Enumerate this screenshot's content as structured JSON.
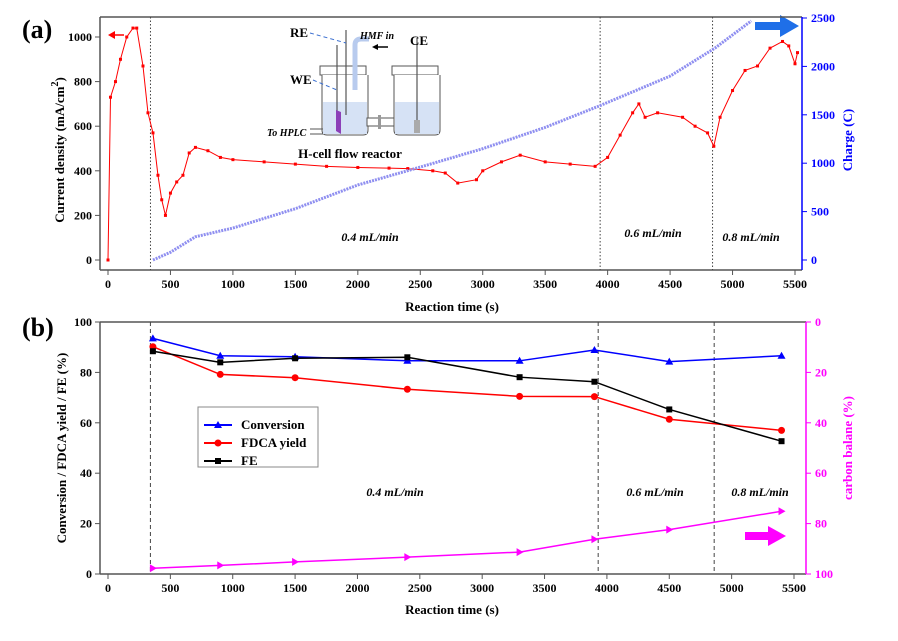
{
  "chart_data": [
    {
      "panel_label": "(a)",
      "type": "line",
      "xlabel": "Reaction time (s)",
      "ylabel": "Current density (mA/cm2)",
      "ylabel_main": "Current density (mA/cm",
      "ylabel_sup": "2",
      "ylabel_end": ")",
      "y2label": "Charge (C)",
      "xlim": [
        0,
        5500
      ],
      "ylim": [
        0,
        1000
      ],
      "y2lim": [
        0,
        2500
      ],
      "xticks": [
        0,
        500,
        1000,
        1500,
        2000,
        2500,
        3000,
        3500,
        4000,
        4500,
        5000,
        5500
      ],
      "yticks": [
        0,
        200,
        400,
        600,
        800,
        1000
      ],
      "y2ticks": [
        0,
        500,
        1000,
        1500,
        2000,
        2500
      ],
      "grid": false,
      "colors": {
        "current": "#ff0000",
        "charge": "#8f8ff0",
        "right_axis": "#0000ff",
        "arrow_right": "#1f6fe8"
      },
      "vlines": [
        340,
        3940,
        4840
      ],
      "annotations": [
        "0.4 mL/min",
        "0.6 mL/min",
        "0.8 mL/min"
      ],
      "inset": {
        "title": "H-cell flow reactor",
        "labels": [
          "RE",
          "WE",
          "HMF in",
          "CE",
          "To HPLC"
        ]
      },
      "series": [
        {
          "axis": "left",
          "x": [
            0,
            20,
            60,
            100,
            150,
            200,
            230,
            280,
            320,
            360,
            400,
            430,
            460,
            500,
            550,
            600,
            650,
            700,
            800,
            900,
            1000,
            1250,
            1500,
            1750,
            2000,
            2250,
            2400,
            2600,
            2700,
            2800,
            2950,
            3000,
            3150,
            3300,
            3500,
            3700,
            3900,
            4000,
            4100,
            4200,
            4250,
            4300,
            4400,
            4600,
            4700,
            4800,
            4850,
            4900,
            5000,
            5100,
            5200,
            5300,
            5400,
            5450,
            5500,
            5520
          ],
          "y": [
            0,
            730,
            800,
            900,
            1000,
            1040,
            1040,
            870,
            660,
            570,
            380,
            270,
            200,
            300,
            350,
            380,
            480,
            505,
            490,
            460,
            450,
            440,
            430,
            420,
            415,
            412,
            410,
            400,
            390,
            345,
            360,
            400,
            440,
            470,
            440,
            430,
            420,
            460,
            560,
            660,
            700,
            640,
            660,
            640,
            600,
            570,
            510,
            640,
            760,
            850,
            870,
            950,
            980,
            960,
            880,
            930
          ]
        },
        {
          "axis": "right",
          "x": [
            360,
            500,
            700,
            1000,
            1500,
            2000,
            2500,
            3000,
            3500,
            3930,
            4500,
            4860,
            5150
          ],
          "y": [
            0,
            80,
            240,
            330,
            530,
            775,
            960,
            1150,
            1370,
            1590,
            1900,
            2190,
            2470
          ]
        }
      ]
    },
    {
      "panel_label": "(b)",
      "type": "line",
      "xlabel": "Reaction time (s)",
      "ylabel": "Conversion / FDCA yield / FE (%)",
      "y2label": "carbon balane (%)",
      "xlim": [
        0,
        5500
      ],
      "ylim": [
        0,
        100
      ],
      "y2lim": [
        100,
        0
      ],
      "xticks": [
        0,
        500,
        1000,
        1500,
        2000,
        2500,
        3000,
        3500,
        4000,
        4500,
        5000,
        5500
      ],
      "yticks": [
        0,
        20,
        40,
        60,
        80,
        100
      ],
      "y2ticks": [
        0,
        20,
        40,
        60,
        80,
        100
      ],
      "grid": false,
      "legend_placement": "center-left",
      "vlines": [
        340,
        3930,
        4860
      ],
      "annotations": [
        "0.4 mL/min",
        "0.6 mL/min",
        "0.8 mL/min"
      ],
      "x": [
        360,
        900,
        1500,
        2400,
        3300,
        3900,
        4500,
        5400
      ],
      "series": [
        {
          "name": "Conversion",
          "color": "#0000ff",
          "marker": "triangle",
          "axis": "left",
          "values": [
            93.5,
            86.6,
            86.2,
            84.6,
            84.6,
            88.9,
            84.3,
            86.6
          ]
        },
        {
          "name": "FDCA yield",
          "color": "#ff0000",
          "marker": "circle",
          "axis": "left",
          "values": [
            90.2,
            79.2,
            77.9,
            73.3,
            70.5,
            70.4,
            61.4,
            57.0
          ]
        },
        {
          "name": "FE",
          "color": "#000000",
          "marker": "square",
          "axis": "left",
          "values": [
            88.4,
            84.0,
            85.6,
            86.0,
            78.1,
            76.3,
            65.3,
            52.7
          ]
        },
        {
          "color": "#ff00ff",
          "marker": "triangle-right",
          "axis": "right",
          "values": [
            97.7,
            96.6,
            95.2,
            93.3,
            91.3,
            86.2,
            82.4,
            75.1
          ]
        }
      ]
    }
  ]
}
